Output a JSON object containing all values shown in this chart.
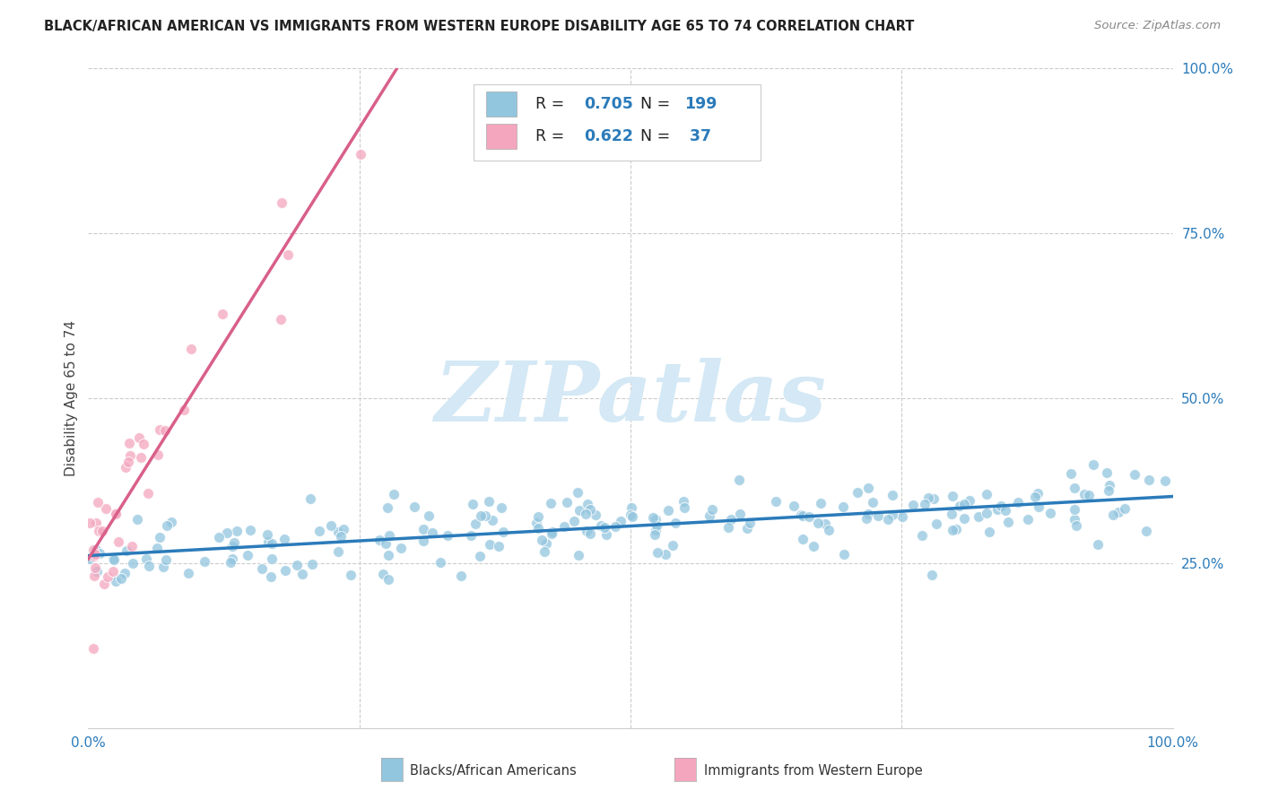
{
  "title": "BLACK/AFRICAN AMERICAN VS IMMIGRANTS FROM WESTERN EUROPE DISABILITY AGE 65 TO 74 CORRELATION CHART",
  "source": "Source: ZipAtlas.com",
  "ylabel": "Disability Age 65 to 74",
  "blue_R": 0.705,
  "blue_N": 199,
  "pink_R": 0.622,
  "pink_N": 37,
  "blue_color": "#92c5de",
  "pink_color": "#f4a6be",
  "blue_line_color": "#2b7bba",
  "pink_line_color": "#d95f8a",
  "stat_color": "#2b7bba",
  "watermark_text": "ZIPatlas",
  "watermark_color": "#d4e8f5",
  "legend_label_blue": "Blacks/African Americans",
  "legend_label_pink": "Immigrants from Western Europe",
  "xlim": [
    0,
    1.0
  ],
  "ylim": [
    0,
    1.0
  ],
  "background_color": "#ffffff",
  "grid_color": "#cccccc",
  "title_color": "#222222",
  "source_color": "#888888",
  "tick_color": "#2b7bba",
  "xaxis_label_color": "#2b7bba"
}
